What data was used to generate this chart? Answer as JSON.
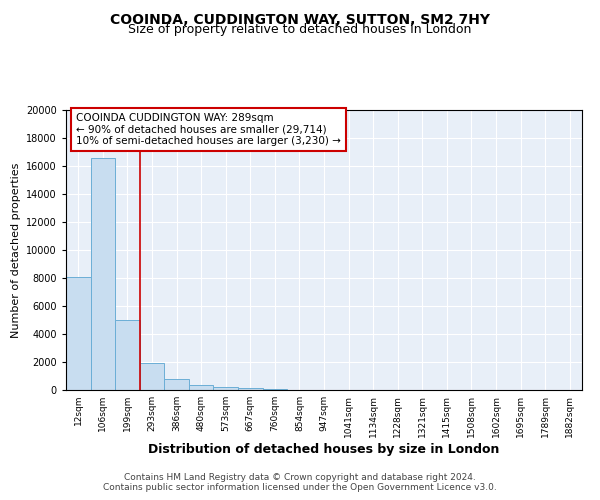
{
  "title": "COOINDA, CUDDINGTON WAY, SUTTON, SM2 7HY",
  "subtitle": "Size of property relative to detached houses in London",
  "xlabel": "Distribution of detached houses by size in London",
  "ylabel": "Number of detached properties",
  "footer_line1": "Contains HM Land Registry data © Crown copyright and database right 2024.",
  "footer_line2": "Contains public sector information licensed under the Open Government Licence v3.0.",
  "annotation_line1": "COOINDA CUDDINGTON WAY: 289sqm",
  "annotation_line2": "← 90% of detached houses are smaller (29,714)",
  "annotation_line3": "10% of semi-detached houses are larger (3,230) →",
  "bar_labels": [
    "12sqm",
    "106sqm",
    "199sqm",
    "293sqm",
    "386sqm",
    "480sqm",
    "573sqm",
    "667sqm",
    "760sqm",
    "854sqm",
    "947sqm",
    "1041sqm",
    "1134sqm",
    "1228sqm",
    "1321sqm",
    "1415sqm",
    "1508sqm",
    "1602sqm",
    "1695sqm",
    "1789sqm",
    "1882sqm"
  ],
  "bar_values": [
    8050,
    16600,
    5000,
    1900,
    800,
    380,
    200,
    140,
    95,
    10,
    0,
    0,
    0,
    0,
    0,
    0,
    0,
    0,
    0,
    0,
    0
  ],
  "bar_color": "#c8ddf0",
  "bar_edge_color": "#6baed6",
  "red_line_x": 2.5,
  "red_line_color": "#cc0000",
  "ylim": [
    0,
    20000
  ],
  "yticks": [
    0,
    2000,
    4000,
    6000,
    8000,
    10000,
    12000,
    14000,
    16000,
    18000,
    20000
  ],
  "background_color": "#e8eff8",
  "annotation_box_color": "#ffffff",
  "annotation_box_edge_color": "#cc0000",
  "title_fontsize": 10,
  "subtitle_fontsize": 9,
  "xlabel_fontsize": 9,
  "ylabel_fontsize": 8,
  "tick_fontsize": 6.5,
  "annotation_fontsize": 7.5,
  "footer_fontsize": 6.5
}
